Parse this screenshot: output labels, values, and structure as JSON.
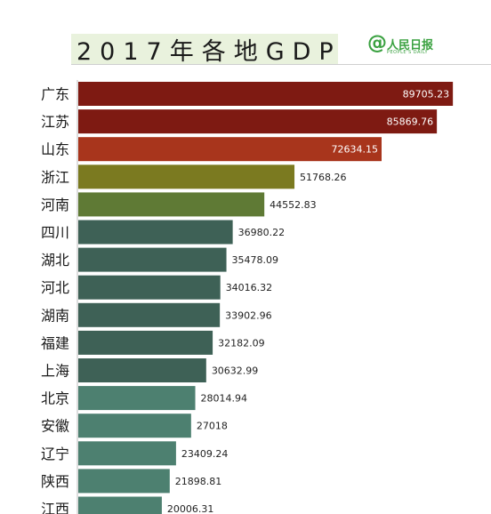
{
  "header": {
    "title": "2017年各地GDP",
    "logo_main": "人民日报",
    "logo_sub": "PEOPLE'S DAILY",
    "logo_at": "@"
  },
  "chart_data": {
    "type": "bar",
    "orientation": "horizontal",
    "title": "2017年各地GDP",
    "categories": [
      "广东",
      "江苏",
      "山东",
      "浙江",
      "河南",
      "四川",
      "湖北",
      "河北",
      "湖南",
      "福建",
      "上海",
      "北京",
      "安徽",
      "辽宁",
      "陕西",
      "江西"
    ],
    "values": [
      89705.23,
      85869.76,
      72634.15,
      51768.26,
      44552.83,
      36980.22,
      35478.09,
      34016.32,
      33902.96,
      32182.09,
      30632.99,
      28014.94,
      27018,
      23409.24,
      21898.81,
      20006.31
    ],
    "value_labels": [
      "89705.23",
      "85869.76",
      "72634.15",
      "51768.26",
      "44552.83",
      "36980.22",
      "35478.09",
      "34016.32",
      "33902.96",
      "32182.09",
      "30632.99",
      "28014.94",
      "27018",
      "23409.24",
      "21898.81",
      "20006.31"
    ],
    "bar_colors": [
      "#7e1a12",
      "#7e1a12",
      "#a8351c",
      "#7b7a20",
      "#5f7a35",
      "#3e6156",
      "#3e6156",
      "#3e6156",
      "#3e6156",
      "#3e6156",
      "#3e6156",
      "#4d8070",
      "#4d8070",
      "#4d8070",
      "#4d8070",
      "#4d8070"
    ],
    "label_colors": [
      "#ffffff",
      "#ffffff",
      "#ffffff",
      "#222222",
      "#222222",
      "#222222",
      "#222222",
      "#222222",
      "#222222",
      "#222222",
      "#222222",
      "#222222",
      "#222222",
      "#222222",
      "#222222",
      "#222222"
    ],
    "label_position": [
      "inside-end",
      "inside-end",
      "inside-end",
      "outside",
      "outside",
      "outside",
      "outside",
      "outside",
      "outside",
      "outside",
      "outside",
      "outside",
      "outside",
      "outside",
      "outside",
      "outside"
    ],
    "xlim": [
      0,
      95000
    ],
    "grid": false,
    "legend": "none"
  }
}
